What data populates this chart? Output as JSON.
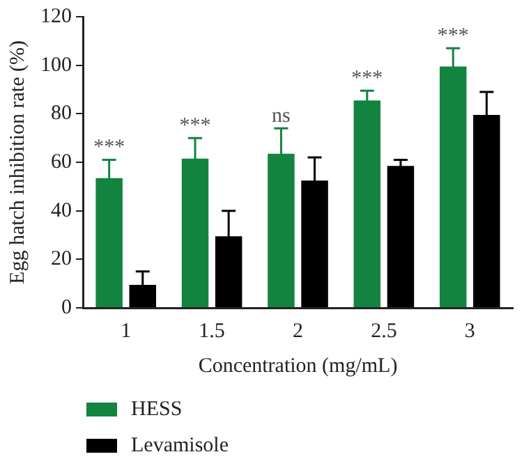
{
  "chart_data": {
    "type": "bar",
    "xlabel": "Concentration (mg/mL)",
    "ylabel": "Egg hatch inhibition rate (%)",
    "categories": [
      "1",
      "1.5",
      "2",
      "2.5",
      "3"
    ],
    "series": [
      {
        "name": "HESS",
        "color": "#138440",
        "values": [
          53.5,
          61.5,
          63.5,
          85.5,
          99.5
        ],
        "errors": [
          7.5,
          8.5,
          10.5,
          4,
          7.5
        ]
      },
      {
        "name": "Levamisole",
        "color": "#000000",
        "values": [
          9.5,
          29.5,
          52.5,
          58.5,
          79.5
        ],
        "errors": [
          5.5,
          10.5,
          9.5,
          2.5,
          9.5
        ]
      }
    ],
    "ylim": [
      0,
      120
    ],
    "yticks": [
      0,
      20,
      40,
      60,
      80,
      100,
      120
    ],
    "grid": false,
    "legend": "bottom left",
    "annotations": [
      "***",
      "***",
      "ns",
      "***",
      "***"
    ]
  }
}
